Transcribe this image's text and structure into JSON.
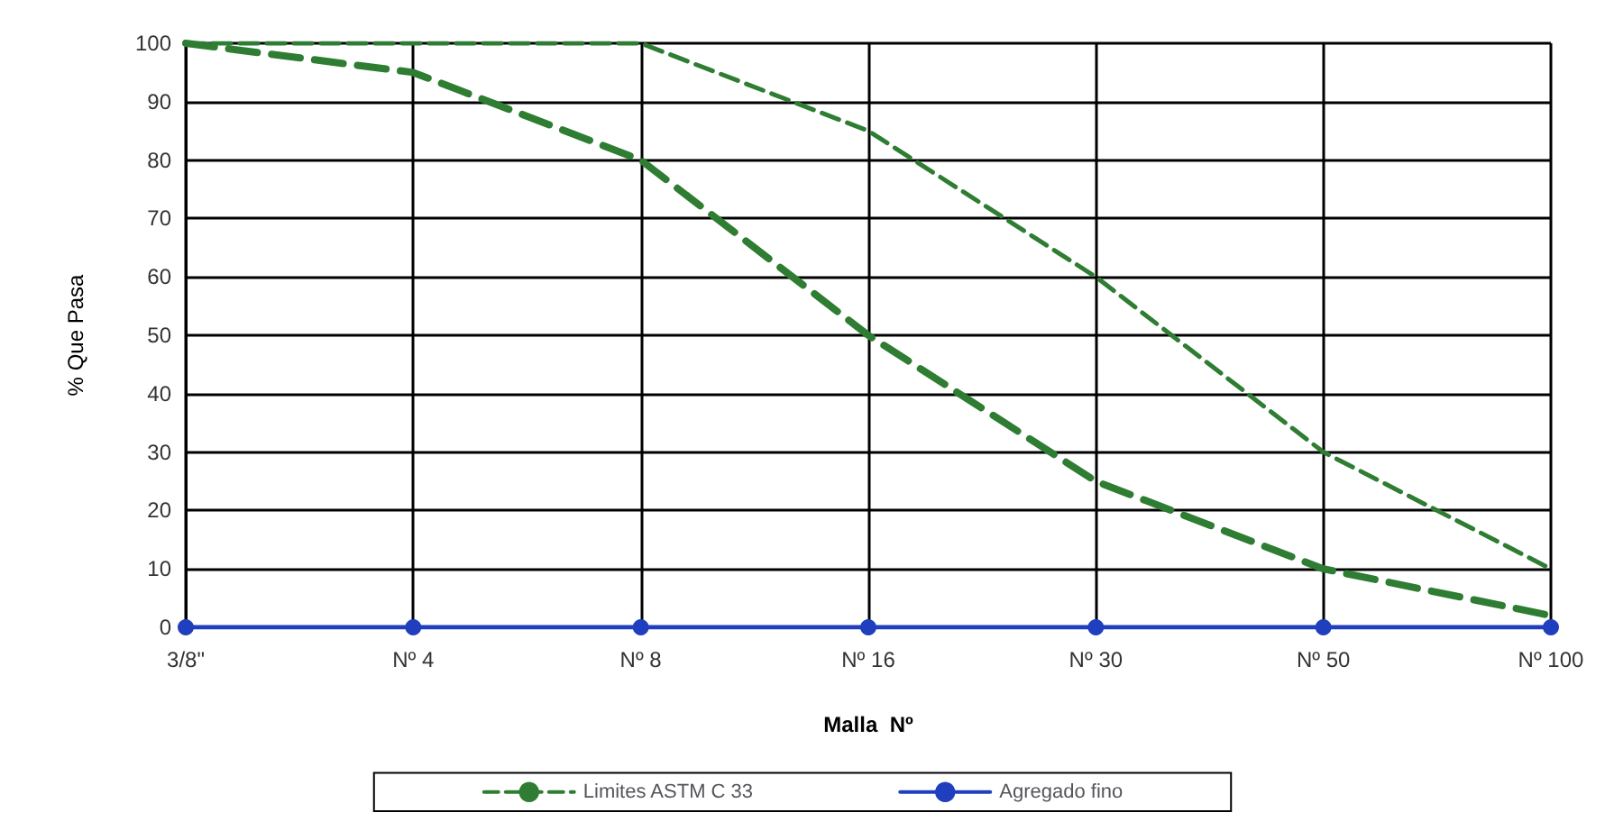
{
  "chart_data": {
    "type": "line",
    "xlabel": "Malla  Nº",
    "ylabel": "% Que Pasa",
    "categories": [
      "3/8\"",
      "Nº 4",
      "Nº 8",
      "Nº 16",
      "Nº 30",
      "Nº 50",
      "Nº 100"
    ],
    "series": [
      {
        "name": "Limites ASTM C 33",
        "color": "#2e7d32",
        "line_style": "dashed",
        "marker": "none",
        "values": [
          100,
          95,
          80,
          50,
          25,
          10,
          2
        ]
      },
      {
        "color": "#2e7d32",
        "line_style": "dashed",
        "marker": "none",
        "values": [
          100,
          100,
          100,
          85,
          60,
          30,
          10
        ]
      },
      {
        "name": "Agregado fino",
        "color": "#1f3fbf",
        "line_style": "solid",
        "marker": "circle",
        "values": [
          0,
          0,
          0,
          0,
          0,
          0,
          0
        ]
      }
    ],
    "ylim": [
      0,
      100
    ],
    "yticks": [
      0,
      10,
      20,
      30,
      40,
      50,
      60,
      70,
      80,
      90,
      100
    ],
    "grid": true,
    "legend": "bottom"
  }
}
